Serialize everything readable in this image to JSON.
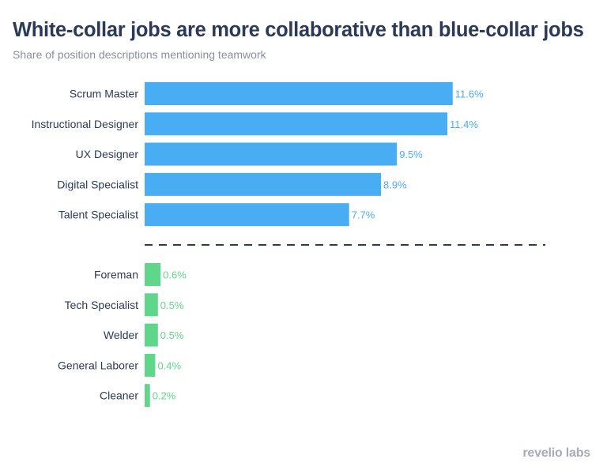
{
  "header": {
    "title": "White-collar jobs are more collaborative than blue-collar jobs",
    "subtitle": "Share of position descriptions mentioning teamwork"
  },
  "brand": {
    "logo_text": "revelio labs"
  },
  "colors": {
    "white_collar": "#49adf4",
    "blue_collar": "#5fd68a",
    "divider": "#2b3a57"
  },
  "chart_data": {
    "type": "bar",
    "orientation": "horizontal",
    "title": "White-collar jobs are more collaborative than blue-collar jobs",
    "subtitle": "Share of position descriptions mentioning teamwork",
    "value_format": "percent",
    "xlim": [
      0,
      13
    ],
    "series": [
      {
        "name": "White-collar",
        "color": "#49adf4",
        "categories": [
          "Scrum Master",
          "Instructional Designer",
          "UX Designer",
          "Digital Specialist",
          "Talent Specialist"
        ],
        "values": [
          11.6,
          11.4,
          9.5,
          8.9,
          7.7
        ],
        "labels": [
          "11.6%",
          "11.4%",
          "9.5%",
          "8.9%",
          "7.7%"
        ]
      },
      {
        "name": "Blue-collar",
        "color": "#5fd68a",
        "categories": [
          "Foreman",
          "Tech Specialist",
          "Welder",
          "General Laborer",
          "Cleaner"
        ],
        "values": [
          0.6,
          0.5,
          0.5,
          0.4,
          0.2
        ],
        "labels": [
          "0.6%",
          "0.5%",
          "0.5%",
          "0.4%",
          "0.2%"
        ]
      }
    ]
  }
}
